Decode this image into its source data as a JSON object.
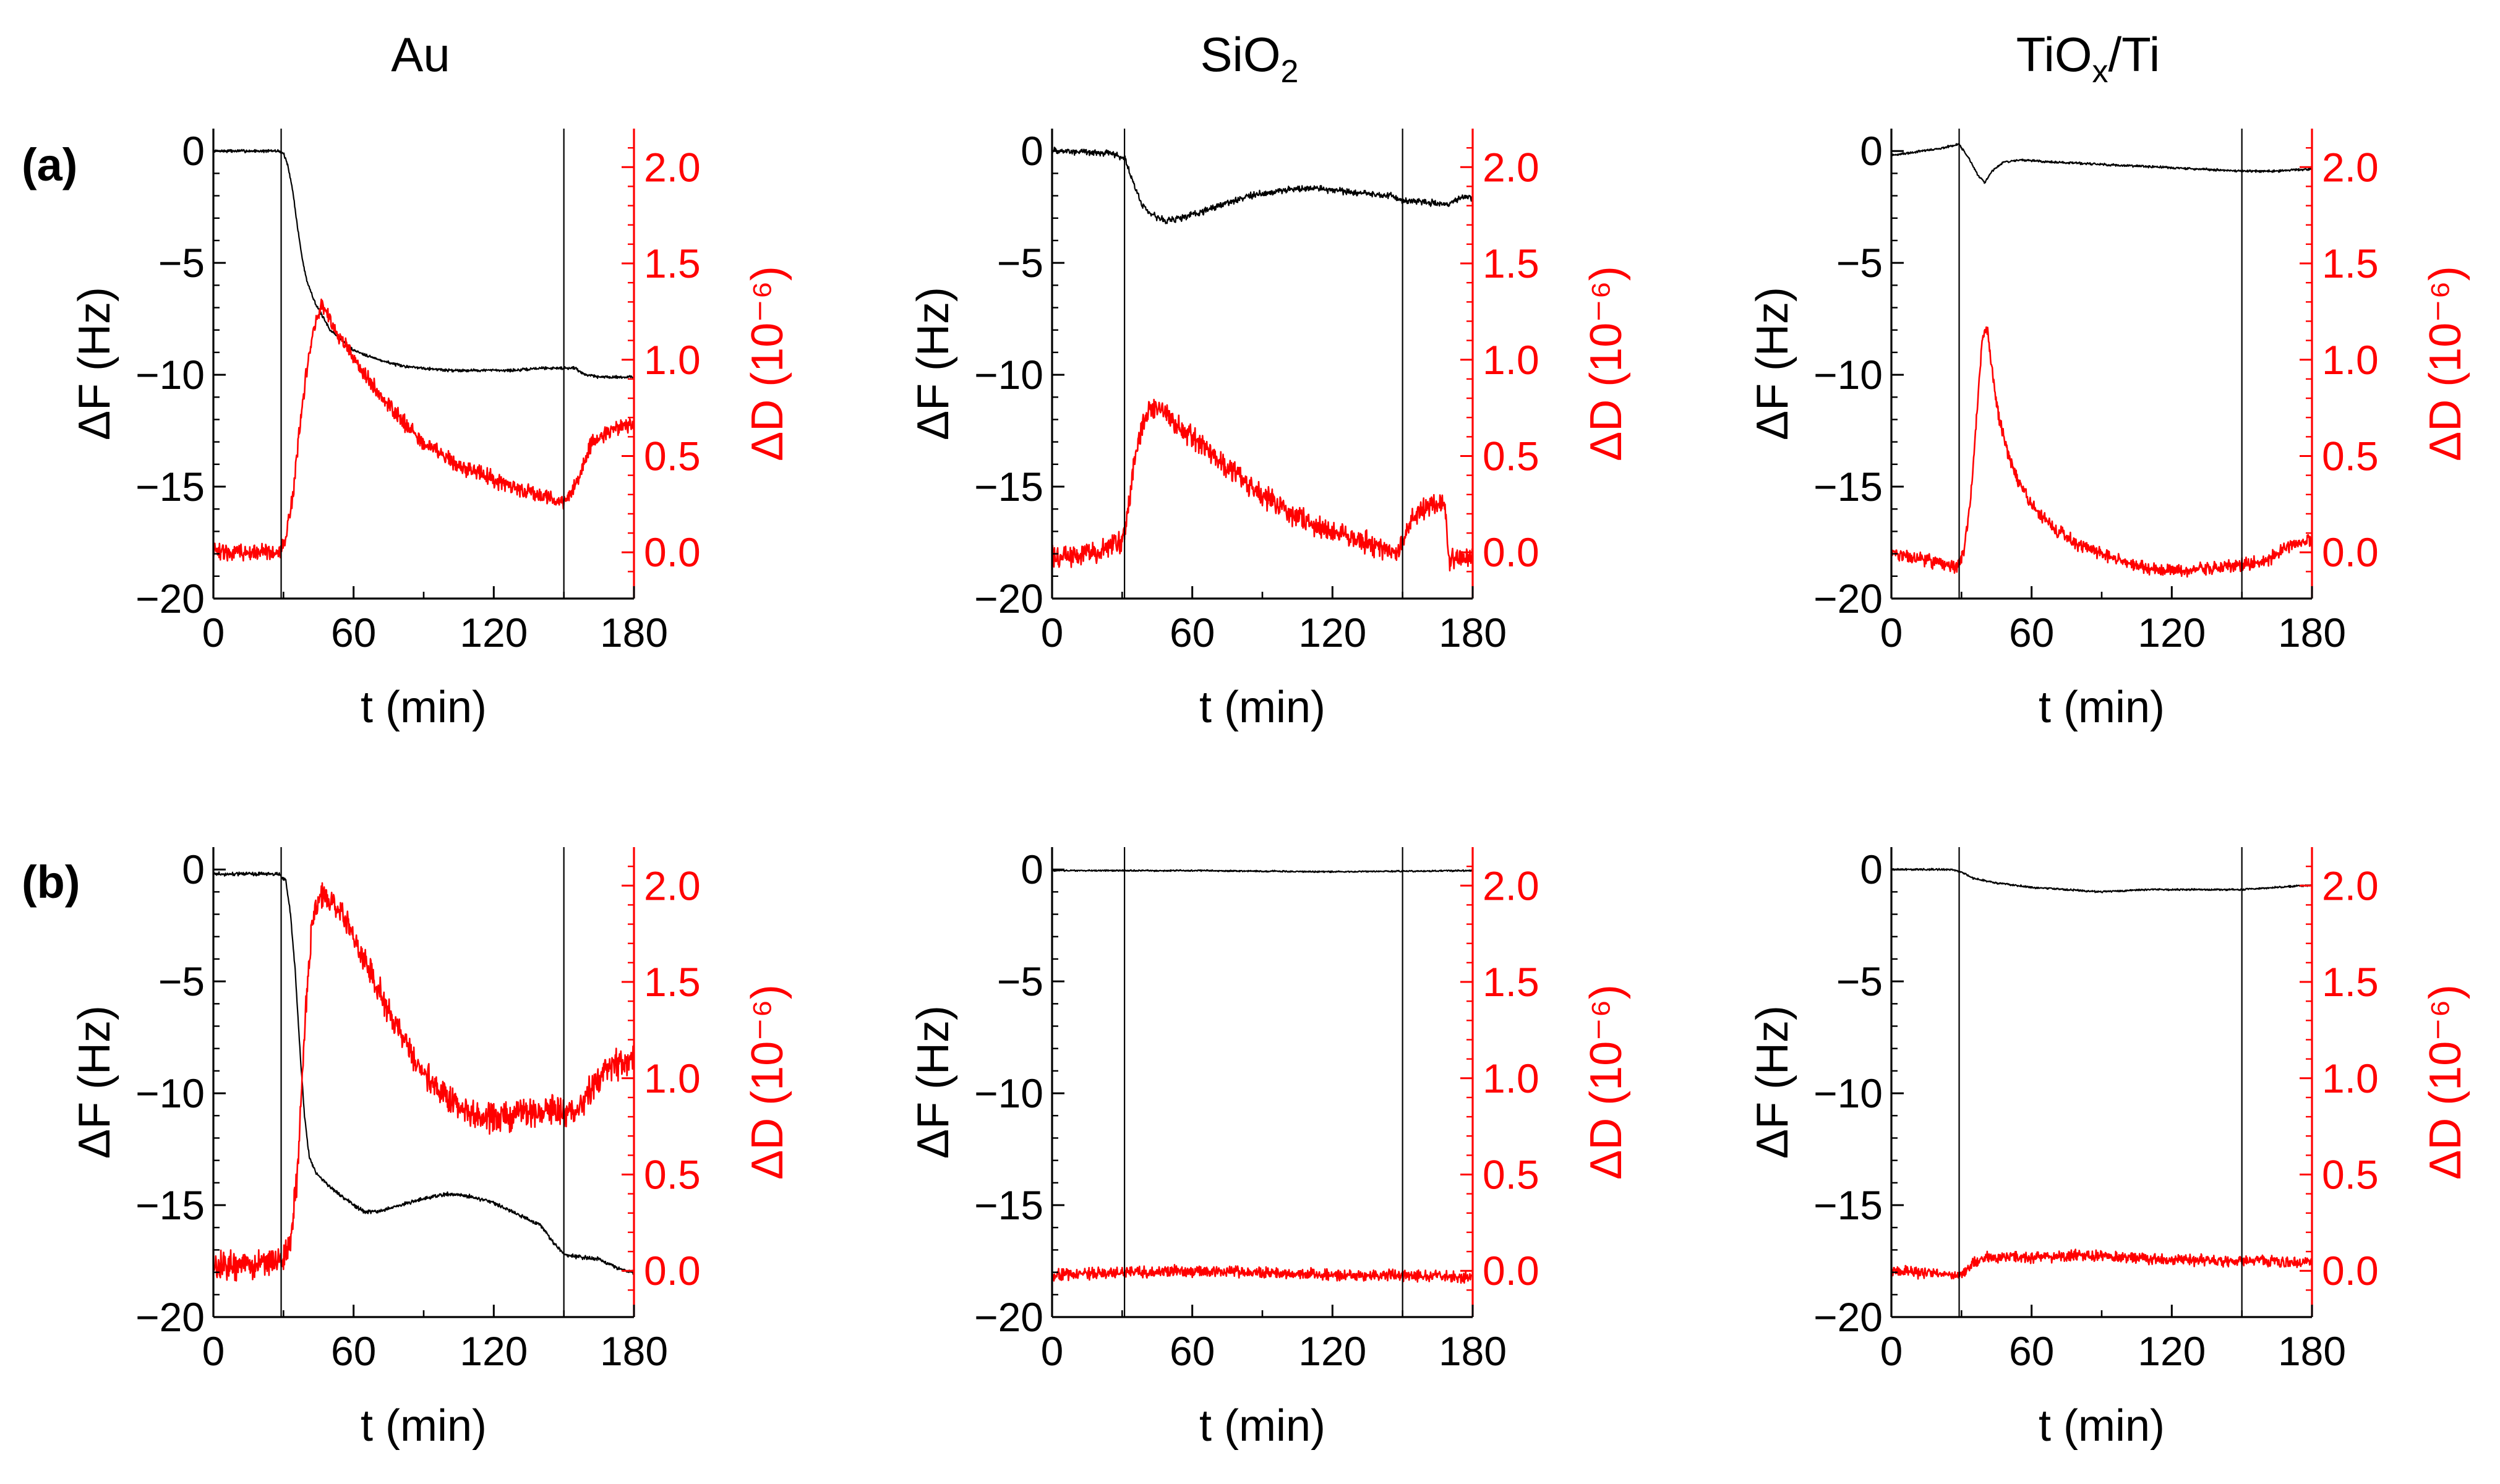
{
  "figure": {
    "column_titles": [
      "Au",
      "SiO",
      "TiO",
      "x",
      "/Ti"
    ],
    "row_labels": [
      "(a)",
      "(b)"
    ]
  },
  "colors": {
    "frequency": "#000000",
    "dissipation": "#ff0000"
  },
  "chart_data": [
    {
      "type": "line",
      "panel": "(a)",
      "title": "Au",
      "xlabel": "t (min)",
      "ylabel": "ΔF (Hz)",
      "y2label": "ΔD (10⁻⁶)",
      "xlim": [
        0,
        180
      ],
      "ylim": [
        -20,
        1
      ],
      "y2lim": [
        -0.24,
        2.2
      ],
      "xticks": [
        0,
        60,
        120,
        180
      ],
      "yticks": [
        0,
        -5,
        -10,
        -15,
        -20
      ],
      "y2ticks": [
        0.0,
        0.5,
        1.0,
        1.5,
        2.0
      ],
      "markers_x": [
        29,
        150
      ],
      "series": [
        {
          "name": "ΔF",
          "axis": "left",
          "color": "#000000",
          "noise": 0.08,
          "x": [
            0,
            28,
            30,
            32,
            34,
            36,
            38,
            40,
            44,
            50,
            60,
            70,
            80,
            90,
            100,
            110,
            120,
            130,
            140,
            150,
            155,
            158,
            165,
            170,
            180
          ],
          "y": [
            0,
            0,
            -0.1,
            -0.7,
            -1.8,
            -3.4,
            -4.8,
            -5.8,
            -6.9,
            -8.0,
            -8.9,
            -9.3,
            -9.6,
            -9.7,
            -9.8,
            -9.8,
            -9.8,
            -9.8,
            -9.7,
            -9.7,
            -9.7,
            -9.95,
            -10.1,
            -10.1,
            -10.1
          ]
        },
        {
          "name": "ΔD",
          "axis": "right",
          "color": "#ff0000",
          "noise": 0.05,
          "x": [
            0,
            26,
            29,
            31,
            34,
            37,
            40,
            43,
            46,
            48,
            55,
            65,
            75,
            90,
            105,
            120,
            135,
            145,
            150,
            155,
            158,
            162,
            170,
            180
          ],
          "y": [
            0.0,
            0.0,
            0.01,
            0.08,
            0.3,
            0.65,
            0.95,
            1.15,
            1.28,
            1.25,
            1.1,
            0.92,
            0.76,
            0.57,
            0.45,
            0.38,
            0.31,
            0.27,
            0.26,
            0.34,
            0.45,
            0.57,
            0.63,
            0.67
          ]
        }
      ]
    },
    {
      "type": "line",
      "panel": "(a)",
      "title": "SiO2",
      "xlabel": "t (min)",
      "ylabel": "ΔF (Hz)",
      "y2label": "ΔD (10⁻⁶)",
      "xlim": [
        0,
        180
      ],
      "ylim": [
        -20,
        1
      ],
      "y2lim": [
        -0.24,
        2.2
      ],
      "xticks": [
        0,
        60,
        120,
        180
      ],
      "yticks": [
        0,
        -5,
        -10,
        -15,
        -20
      ],
      "y2ticks": [
        0.0,
        0.5,
        1.0,
        1.5,
        2.0
      ],
      "markers_x": [
        31,
        150
      ],
      "series": [
        {
          "name": "ΔF",
          "axis": "left",
          "color": "#000000",
          "noise": 0.18,
          "x": [
            0,
            25,
            31,
            34,
            38,
            42,
            48,
            55,
            65,
            75,
            85,
            95,
            105,
            115,
            125,
            135,
            145,
            150,
            160,
            170,
            175,
            180
          ],
          "y": [
            0,
            -0.1,
            -0.3,
            -1.2,
            -2.3,
            -2.8,
            -3.1,
            -3.0,
            -2.7,
            -2.3,
            -2.0,
            -1.8,
            -1.7,
            -1.7,
            -1.8,
            -1.9,
            -2.0,
            -2.2,
            -2.3,
            -2.4,
            -2.1,
            -2.1
          ]
        },
        {
          "name": "ΔD",
          "axis": "right",
          "color": "#ff0000",
          "noise": 0.07,
          "x": [
            0,
            20,
            30,
            33,
            36,
            40,
            44,
            50,
            60,
            70,
            80,
            90,
            100,
            110,
            120,
            135,
            148,
            152,
            156,
            162,
            168,
            170,
            174,
            180
          ],
          "y": [
            -0.03,
            0.0,
            0.05,
            0.25,
            0.55,
            0.72,
            0.75,
            0.7,
            0.6,
            0.5,
            0.4,
            0.3,
            0.22,
            0.15,
            0.1,
            0.05,
            0.0,
            0.12,
            0.2,
            0.25,
            0.25,
            -0.05,
            -0.03,
            -0.02
          ]
        }
      ]
    },
    {
      "type": "line",
      "panel": "(a)",
      "title": "TiOx/Ti",
      "xlabel": "t (min)",
      "ylabel": "ΔF (Hz)",
      "y2label": "ΔD (10⁻⁶)",
      "xlim": [
        0,
        180
      ],
      "ylim": [
        -20,
        1
      ],
      "y2lim": [
        -0.24,
        2.2
      ],
      "xticks": [
        0,
        60,
        120,
        180
      ],
      "yticks": [
        0,
        -5,
        -10,
        -15,
        -20
      ],
      "y2ticks": [
        0.0,
        0.5,
        1.0,
        1.5,
        2.0
      ],
      "markers_x": [
        29,
        150
      ],
      "series": [
        {
          "name": "ΔF",
          "axis": "left",
          "color": "#000000",
          "noise": 0.06,
          "x": [
            0,
            20,
            29,
            33,
            37,
            40,
            43,
            48,
            55,
            70,
            90,
            110,
            130,
            150,
            165,
            180
          ],
          "y": [
            -0.2,
            0.1,
            0.3,
            -0.3,
            -1.1,
            -1.4,
            -0.9,
            -0.5,
            -0.4,
            -0.5,
            -0.6,
            -0.7,
            -0.8,
            -0.9,
            -0.9,
            -0.8
          ]
        },
        {
          "name": "ΔD",
          "axis": "right",
          "color": "#ff0000",
          "noise": 0.04,
          "x": [
            0,
            15,
            28,
            31,
            34,
            37,
            39,
            41,
            43,
            46,
            50,
            55,
            60,
            70,
            80,
            90,
            100,
            110,
            120,
            130,
            140,
            150,
            160,
            170,
            180
          ],
          "y": [
            0.0,
            -0.04,
            -0.08,
            0.0,
            0.28,
            0.8,
            1.12,
            1.15,
            0.95,
            0.7,
            0.5,
            0.35,
            0.25,
            0.12,
            0.04,
            -0.01,
            -0.05,
            -0.08,
            -0.1,
            -0.09,
            -0.08,
            -0.06,
            -0.05,
            0.03,
            0.07
          ]
        }
      ]
    },
    {
      "type": "line",
      "panel": "(b)",
      "title": "Au",
      "xlabel": "t (min)",
      "ylabel": "ΔF (Hz)",
      "y2label": "ΔD (10⁻⁶)",
      "xlim": [
        0,
        180
      ],
      "ylim": [
        -20,
        1
      ],
      "y2lim": [
        -0.24,
        2.2
      ],
      "xticks": [
        0,
        60,
        120,
        180
      ],
      "yticks": [
        0,
        -5,
        -10,
        -15,
        -20
      ],
      "y2ticks": [
        0.0,
        0.5,
        1.0,
        1.5,
        2.0
      ],
      "markers_x": [
        29,
        150
      ],
      "series": [
        {
          "name": "ΔF",
          "axis": "left",
          "color": "#000000",
          "noise": 0.1,
          "x": [
            0,
            28,
            31,
            33,
            35,
            37,
            39,
            41,
            44,
            48,
            55,
            60,
            65,
            70,
            80,
            90,
            100,
            110,
            120,
            130,
            140,
            145,
            150,
            155,
            165,
            175,
            180
          ],
          "y": [
            -0.2,
            -0.2,
            -0.5,
            -2.0,
            -4.5,
            -8.0,
            -11.0,
            -12.8,
            -13.6,
            -14.0,
            -14.6,
            -15.0,
            -15.3,
            -15.3,
            -15.0,
            -14.7,
            -14.5,
            -14.6,
            -14.9,
            -15.4,
            -15.9,
            -16.6,
            -17.2,
            -17.3,
            -17.4,
            -17.9,
            -18.0
          ]
        },
        {
          "name": "ΔD",
          "axis": "right",
          "color": "#ff0000",
          "noise": 0.09,
          "x": [
            0,
            30,
            33,
            36,
            38,
            40,
            42,
            44,
            46,
            48,
            52,
            58,
            65,
            75,
            85,
            95,
            105,
            115,
            125,
            135,
            145,
            150,
            155,
            158,
            162,
            167,
            172,
            180
          ],
          "y": [
            0.02,
            0.05,
            0.15,
            0.5,
            1.0,
            1.45,
            1.75,
            1.9,
            1.95,
            1.95,
            1.9,
            1.78,
            1.6,
            1.35,
            1.12,
            0.95,
            0.85,
            0.8,
            0.8,
            0.82,
            0.83,
            0.83,
            0.83,
            0.88,
            0.95,
            1.03,
            1.07,
            1.1
          ]
        }
      ]
    },
    {
      "type": "line",
      "panel": "(b)",
      "title": "SiO2",
      "xlabel": "t (min)",
      "ylabel": "ΔF (Hz)",
      "y2label": "ΔD (10⁻⁶)",
      "xlim": [
        0,
        180
      ],
      "ylim": [
        -20,
        1
      ],
      "y2lim": [
        -0.24,
        2.2
      ],
      "xticks": [
        0,
        60,
        120,
        180
      ],
      "yticks": [
        0,
        -5,
        -10,
        -15,
        -20
      ],
      "y2ticks": [
        0.0,
        0.5,
        1.0,
        1.5,
        2.0
      ],
      "markers_x": [
        31,
        150
      ],
      "series": [
        {
          "name": "ΔF",
          "axis": "left",
          "color": "#000000",
          "noise": 0.04,
          "x": [
            0,
            60,
            120,
            180
          ],
          "y": [
            -0.05,
            -0.05,
            -0.1,
            -0.05
          ]
        },
        {
          "name": "ΔD",
          "axis": "right",
          "color": "#ff0000",
          "noise": 0.035,
          "x": [
            0,
            60,
            120,
            180
          ],
          "y": [
            -0.02,
            0.0,
            -0.02,
            -0.03
          ]
        }
      ]
    },
    {
      "type": "line",
      "panel": "(b)",
      "title": "TiOx/Ti",
      "xlabel": "t (min)",
      "ylabel": "ΔF (Hz)",
      "y2label": "ΔD (10⁻⁶)",
      "xlim": [
        0,
        180
      ],
      "ylim": [
        -20,
        1
      ],
      "y2lim": [
        -0.24,
        2.2
      ],
      "xticks": [
        0,
        60,
        120,
        180
      ],
      "yticks": [
        0,
        -5,
        -10,
        -15,
        -20
      ],
      "y2ticks": [
        0.0,
        0.5,
        1.0,
        1.5,
        2.0
      ],
      "markers_x": [
        29,
        150
      ],
      "series": [
        {
          "name": "ΔF",
          "axis": "left",
          "color": "#000000",
          "noise": 0.05,
          "x": [
            0,
            25,
            30,
            35,
            45,
            60,
            75,
            90,
            110,
            130,
            150,
            165,
            180
          ],
          "y": [
            0.0,
            0.0,
            -0.1,
            -0.4,
            -0.6,
            -0.8,
            -0.9,
            -1.0,
            -0.9,
            -0.9,
            -0.9,
            -0.8,
            -0.7
          ]
        },
        {
          "name": "ΔD",
          "axis": "right",
          "color": "#ff0000",
          "noise": 0.035,
          "x": [
            0,
            28,
            32,
            36,
            40,
            60,
            80,
            100,
            120,
            140,
            160,
            180
          ],
          "y": [
            0.0,
            -0.02,
            0.0,
            0.05,
            0.07,
            0.07,
            0.08,
            0.07,
            0.06,
            0.05,
            0.05,
            0.04
          ]
        }
      ]
    }
  ]
}
